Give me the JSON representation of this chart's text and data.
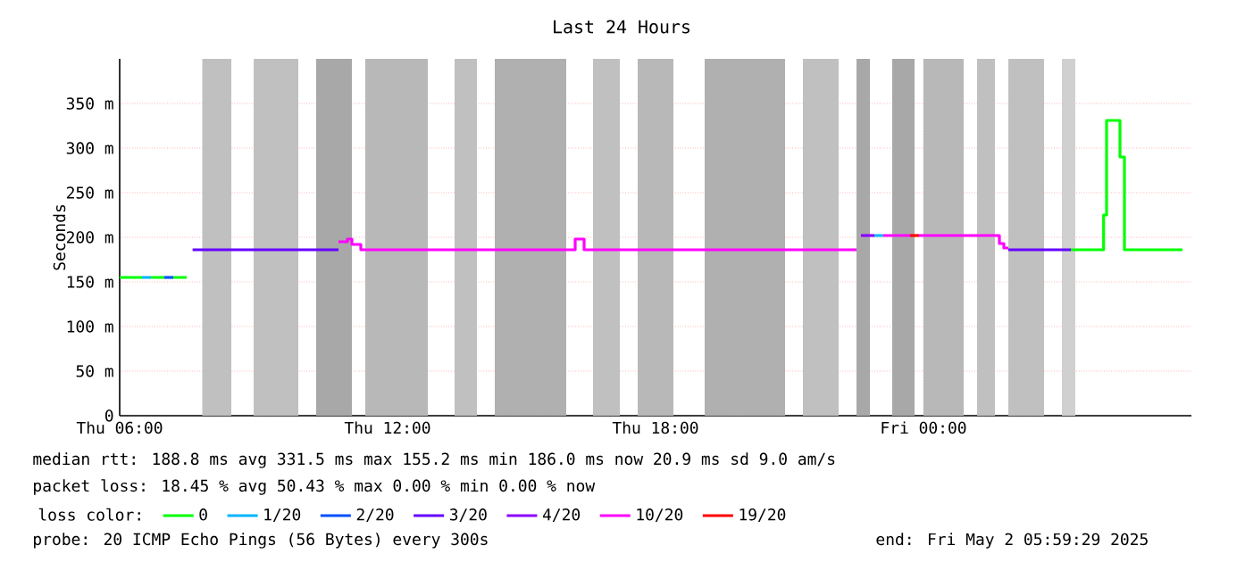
{
  "chart_data": {
    "type": "step",
    "title": "Last 24 Hours",
    "ylabel": "Seconds",
    "legend_title": "loss color:",
    "legend": "bottom",
    "grid": true,
    "xlim": [
      "2025-05-01T06:00",
      "2025-05-02T06:00"
    ],
    "xticks": [
      {
        "value": "2025-05-01T06:00",
        "label": "Thu 06:00"
      },
      {
        "value": "2025-05-01T12:00",
        "label": "Thu 12:00"
      },
      {
        "value": "2025-05-01T18:00",
        "label": "Thu 18:00"
      },
      {
        "value": "2025-05-02T00:00",
        "label": "Fri 00:00"
      }
    ],
    "ylim": [
      0,
      400
    ],
    "yticks": [
      0,
      {
        "value": 50,
        "label": "50 m"
      },
      {
        "value": 100,
        "label": "100 m"
      },
      {
        "value": 150,
        "label": "150 m"
      },
      {
        "value": 200,
        "label": "200 m"
      },
      {
        "value": 250,
        "label": "250 m"
      },
      {
        "value": 300,
        "label": "300 m"
      },
      {
        "value": 350,
        "label": "350 m"
      }
    ],
    "bands": [
      {
        "axis": "x",
        "from": "2025-05-01T07:51",
        "to": "2025-05-01T08:30",
        "color": "#c0c0c0"
      },
      {
        "axis": "x",
        "from": "2025-05-01T09:00",
        "to": "2025-05-01T10:00",
        "color": "#c0c0c0"
      },
      {
        "axis": "x",
        "from": "2025-05-01T10:24",
        "to": "2025-05-01T11:12",
        "color": "#a8a8a8"
      },
      {
        "axis": "x",
        "from": "2025-05-01T11:30",
        "to": "2025-05-01T12:54",
        "color": "#b8b8b8"
      },
      {
        "axis": "x",
        "from": "2025-05-01T13:30",
        "to": "2025-05-01T14:00",
        "color": "#c0c0c0"
      },
      {
        "axis": "x",
        "from": "2025-05-01T14:24",
        "to": "2025-05-01T16:00",
        "color": "#b0b0b0"
      },
      {
        "axis": "x",
        "from": "2025-05-01T16:36",
        "to": "2025-05-01T17:12",
        "color": "#c0c0c0"
      },
      {
        "axis": "x",
        "from": "2025-05-01T17:36",
        "to": "2025-05-01T18:24",
        "color": "#b8b8b8"
      },
      {
        "axis": "x",
        "from": "2025-05-01T19:06",
        "to": "2025-05-01T20:54",
        "color": "#b0b0b0"
      },
      {
        "axis": "x",
        "from": "2025-05-01T21:18",
        "to": "2025-05-01T22:06",
        "color": "#c0c0c0"
      },
      {
        "axis": "x",
        "from": "2025-05-01T22:30",
        "to": "2025-05-01T22:48",
        "color": "#a8a8a8"
      },
      {
        "axis": "x",
        "from": "2025-05-01T23:18",
        "to": "2025-05-01T23:48",
        "color": "#a8a8a8"
      },
      {
        "axis": "x",
        "from": "2025-05-02T00:00",
        "to": "2025-05-02T00:54",
        "color": "#b8b8b8"
      },
      {
        "axis": "x",
        "from": "2025-05-02T01:12",
        "to": "2025-05-02T01:36",
        "color": "#c0c0c0"
      },
      {
        "axis": "x",
        "from": "2025-05-02T01:54",
        "to": "2025-05-02T02:42",
        "color": "#c0c0c0"
      },
      {
        "axis": "x",
        "from": "2025-05-02T03:06",
        "to": "2025-05-02T03:24",
        "color": "#d0d0d0"
      }
    ],
    "series": [
      {
        "name": "0",
        "color": "#00ff00",
        "x": [
          "2025-05-01T06:00",
          "2025-05-01T06:30",
          null,
          "2025-05-01T06:42",
          "2025-05-01T07:00",
          null,
          "2025-05-01T07:12",
          "2025-05-01T07:30",
          null,
          "2025-05-02T03:18",
          "2025-05-02T04:02",
          "2025-05-02T04:06",
          "2025-05-02T04:24",
          "2025-05-02T04:30",
          "2025-05-02T05:48"
        ],
        "values": [
          155,
          155,
          null,
          155,
          155,
          null,
          155,
          155,
          null,
          186,
          225,
          331,
          290,
          186,
          186
        ]
      },
      {
        "name": "1/20",
        "color": "#00b4ff",
        "x": [
          "2025-05-01T06:30",
          "2025-05-01T06:42",
          null,
          "2025-05-01T22:54",
          "2025-05-01T23:06"
        ],
        "values": [
          155,
          155,
          null,
          202,
          202
        ]
      },
      {
        "name": "2/20",
        "color": "#0050ff",
        "x": [
          "2025-05-01T07:00",
          "2025-05-01T07:12"
        ],
        "values": [
          155,
          155
        ]
      },
      {
        "name": "3/20",
        "color": "#6400ff",
        "x": [
          "2025-05-01T07:38",
          "2025-05-01T10:54",
          null,
          "2025-05-02T01:54",
          "2025-05-02T03:18"
        ],
        "values": [
          186,
          186,
          null,
          186,
          186
        ]
      },
      {
        "name": "4/20",
        "color": "#8c00ff",
        "x": [
          "2025-05-01T22:36",
          "2025-05-01T22:54"
        ],
        "values": [
          202,
          202
        ]
      },
      {
        "name": "10/20",
        "color": "#ff00ff",
        "x": [
          "2025-05-01T10:54",
          "2025-05-01T11:06",
          "2025-05-01T11:12",
          "2025-05-01T11:24",
          "2025-05-01T16:12",
          "2025-05-01T16:24",
          "2025-05-01T22:30",
          null,
          "2025-05-01T23:06",
          "2025-05-01T23:42",
          null,
          "2025-05-01T23:54",
          "2025-05-02T01:42",
          "2025-05-02T01:48",
          "2025-05-02T01:54"
        ],
        "values": [
          195,
          198,
          192,
          186,
          198,
          186,
          186,
          null,
          202,
          202,
          null,
          202,
          193,
          188,
          188
        ]
      },
      {
        "name": "19/20",
        "color": "#ff0000",
        "x": [
          "2025-05-01T23:42",
          "2025-05-01T23:54"
        ],
        "values": [
          202,
          202
        ]
      }
    ],
    "annotations": [
      "median rtt: 188.8 ms avg 331.5 ms max 155.2 ms min 186.0 ms now 20.9 ms sd 9.0 am/s",
      "packet loss: 18.45 % avg 50.43 % max 0.00 % min 0.00 % now",
      "probe: 20 ICMP Echo Pings (56 Bytes) every 300s",
      "end: Fri May 2 05:59:29 2025"
    ]
  }
}
